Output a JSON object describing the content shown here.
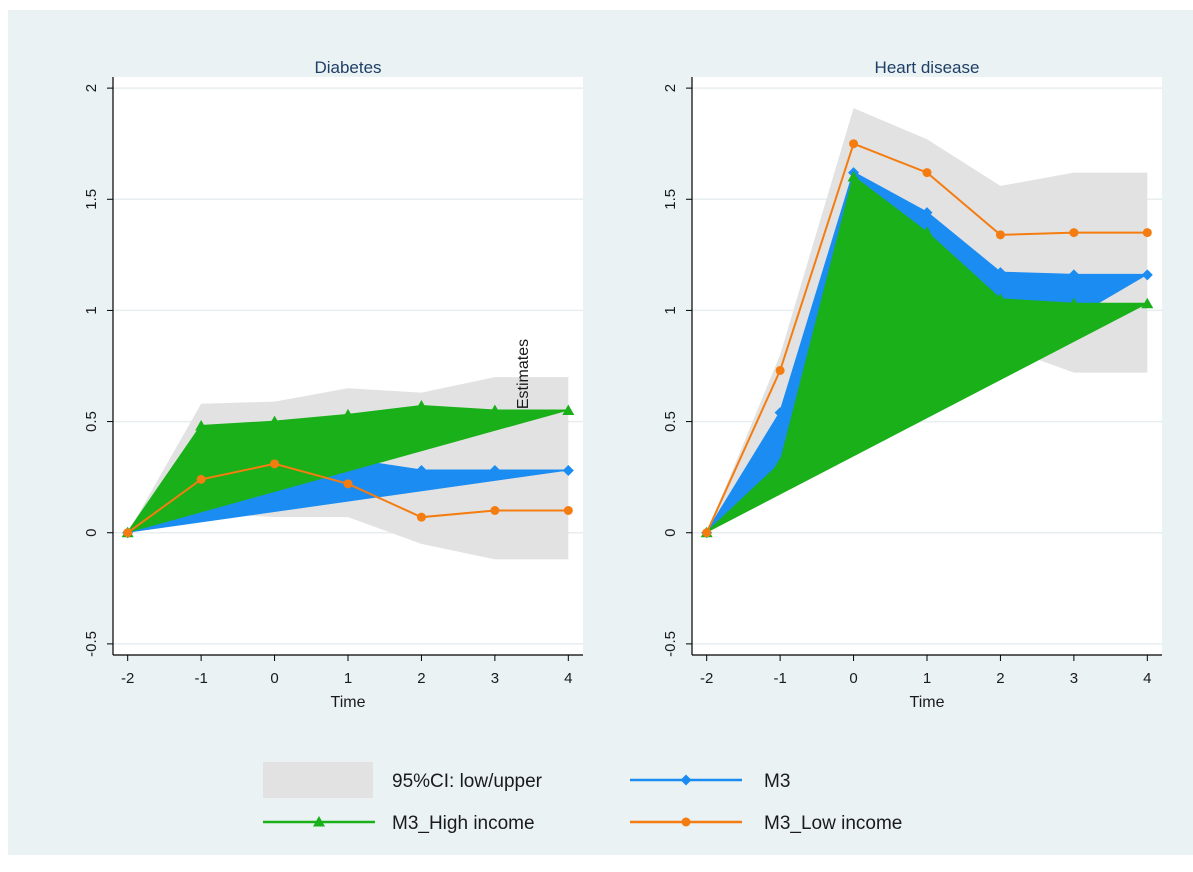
{
  "chart_data": {
    "type": "area",
    "x": [
      -2,
      -1,
      0,
      1,
      2,
      3,
      4
    ],
    "xlabel": "Time",
    "ylabel": "Estimates",
    "xlim": [
      -2.2,
      4.2
    ],
    "ylim": [
      -0.55,
      2.05
    ],
    "x_ticks": [
      "-2",
      "-1",
      "0",
      "1",
      "2",
      "3",
      "4"
    ],
    "y_ticks": [
      "-0.5",
      "0",
      "0.5",
      "1",
      "1.5",
      "2"
    ],
    "grid": true,
    "legend_position": "bottom",
    "colors": {
      "background": "#eaf2f3",
      "plot_background": "#ffffff",
      "ci": "#e2e2e2",
      "m3": "#1b8cf2",
      "high": "#19b019",
      "low": "#f47c10",
      "title": "#1e3f66",
      "grid": "#e7eef0"
    },
    "legend": [
      {
        "label": "95%CI: low/upper",
        "marker": "band",
        "color": "#e2e2e2"
      },
      {
        "label": "M3",
        "marker": "diamond",
        "color": "#1b8cf2"
      },
      {
        "label": "M3_High income",
        "marker": "triangle",
        "color": "#19b019"
      },
      {
        "label": "M3_Low income",
        "marker": "circle",
        "color": "#f47c10"
      }
    ],
    "panels": [
      {
        "title": "Diabetes",
        "ci_low": [
          0,
          0.09,
          0.07,
          0.07,
          -0.05,
          -0.12,
          -0.12
        ],
        "ci_high": [
          0,
          0.58,
          0.59,
          0.65,
          0.63,
          0.7,
          0.7
        ],
        "series": [
          {
            "name": "M3",
            "values": [
              0,
              0.28,
              0.31,
              0.33,
              0.28,
              0.28,
              0.28
            ]
          },
          {
            "name": "M3_High income",
            "values": [
              0,
              0.48,
              0.5,
              0.53,
              0.57,
              0.55,
              0.55
            ]
          },
          {
            "name": "M3_Low income",
            "values": [
              0,
              0.24,
              0.31,
              0.22,
              0.07,
              0.1,
              0.1
            ]
          }
        ]
      },
      {
        "title": "Heart disease",
        "ci_low": [
          0,
          0.27,
          1.33,
          1.08,
          0.84,
          0.72,
          0.72
        ],
        "ci_high": [
          0,
          0.8,
          1.91,
          1.77,
          1.56,
          1.62,
          1.62
        ],
        "series": [
          {
            "name": "M3",
            "values": [
              0,
              0.54,
              1.62,
              1.44,
              1.17,
              1.16,
              1.16
            ]
          },
          {
            "name": "M3_High income",
            "values": [
              0,
              0.31,
              1.6,
              1.35,
              1.05,
              1.03,
              1.03
            ]
          },
          {
            "name": "M3_Low income",
            "values": [
              0,
              0.73,
              1.75,
              1.62,
              1.34,
              1.35,
              1.35
            ]
          }
        ]
      }
    ]
  }
}
